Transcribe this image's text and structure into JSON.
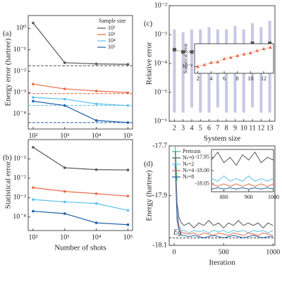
{
  "chart_data": [
    {
      "type": "line",
      "label": "(a)",
      "ylabel": "Energy error (hartree)",
      "x": [
        100,
        1000,
        10000,
        100000
      ],
      "xlog": true,
      "ylog": true,
      "xlim": [
        70,
        140000
      ],
      "ylim": [
        2e-05,
        4
      ],
      "xticks": [
        {
          "value": 100,
          "label": "10²"
        },
        {
          "value": 1000,
          "label": "10³"
        },
        {
          "value": 10000,
          "label": "10⁴"
        },
        {
          "value": 100000,
          "label": "10⁵"
        }
      ],
      "yticks": [
        {
          "value": 0.0001,
          "label": "10⁻⁴"
        },
        {
          "value": 0.001,
          "label": "10⁻³"
        },
        {
          "value": 0.01,
          "label": "10⁻²"
        },
        {
          "value": 0.1,
          "label": "10⁻¹"
        },
        {
          "value": 1,
          "label": "10⁰"
        }
      ],
      "legend_title": "Sample size",
      "legend": "upper right",
      "series": [
        {
          "name": "10²",
          "color": "#555555",
          "values": [
            1.8,
            0.025,
            0.022,
            0.021
          ],
          "level": 0.018
        },
        {
          "name": "10³",
          "color": "#e8694a",
          "values": [
            0.0025,
            0.0015,
            0.0012,
            0.001
          ],
          "level": 0.0009
        },
        {
          "name": "10⁴",
          "color": "#5bc0eb",
          "values": [
            0.0006,
            0.0005,
            0.0003,
            0.00025
          ],
          "level": 0.00025
        },
        {
          "name": "10⁵",
          "color": "#1f5fa8",
          "values": [
            0.0004,
            0.00025,
            5e-05,
            4e-05
          ],
          "level": 4e-05
        }
      ]
    },
    {
      "type": "line",
      "label": "(b)",
      "ylabel": "Statistical error",
      "xlabel": "Number of shots",
      "x": [
        100,
        1000,
        10000,
        100000
      ],
      "xlog": true,
      "ylog": true,
      "xlim": [
        70,
        140000
      ],
      "ylim": [
        2e-05,
        1
      ],
      "xticks": [
        {
          "value": 100,
          "label": "10²"
        },
        {
          "value": 1000,
          "label": "10³"
        },
        {
          "value": 10000,
          "label": "10⁴"
        },
        {
          "value": 100000,
          "label": "10⁵"
        }
      ],
      "yticks": [
        {
          "value": 0.0001,
          "label": "10⁻⁴"
        },
        {
          "value": 0.001,
          "label": "10⁻³"
        },
        {
          "value": 0.01,
          "label": "10⁻²"
        },
        {
          "value": 0.1,
          "label": "10⁻¹"
        }
      ],
      "series": [
        {
          "color": "#555555",
          "values": [
            0.4,
            0.035,
            0.028,
            0.027
          ]
        },
        {
          "color": "#e8694a",
          "values": [
            0.0033,
            0.0021,
            0.0016,
            0.0012
          ]
        },
        {
          "color": "#5bc0eb",
          "values": [
            0.0008,
            0.0006,
            0.0005,
            0.00022
          ]
        },
        {
          "color": "#1f5fa8",
          "values": [
            0.0002,
            0.00015,
            5e-05,
            4e-05
          ]
        }
      ]
    },
    {
      "type": "spread",
      "label": "(c)",
      "ylabel": "Relative error",
      "xlabel": "System size",
      "x": [
        2,
        3,
        4,
        5,
        6,
        7,
        8,
        9,
        10,
        11,
        12,
        13
      ],
      "ylog": true,
      "xlim": [
        1.4,
        13.6
      ],
      "ylim": [
        1e-06,
        0.01
      ],
      "xticks": [
        2,
        3,
        4,
        5,
        6,
        7,
        8,
        9,
        10,
        11,
        12,
        13
      ],
      "yticks": [
        {
          "value": 1e-06,
          "label": "10⁻⁶"
        },
        {
          "value": 1e-05,
          "label": "10⁻⁵"
        },
        {
          "value": 0.0001,
          "label": "10⁻⁴"
        },
        {
          "value": 0.001,
          "label": "10⁻³"
        },
        {
          "value": 0.01,
          "label": "10⁻²"
        }
      ],
      "color": "#555555",
      "spread_color": "#9a9ad0",
      "values": [
        0.0003,
        0.00025,
        0.00025,
        0.0003,
        0.0003,
        0.00025,
        0.00025,
        0.0004,
        0.00025,
        0.0005,
        0.0003,
        0.0005
      ],
      "low": [
        2e-06,
        2e-06,
        3e-06,
        2e-06,
        2e-06,
        3e-06,
        2e-06,
        2e-06,
        2e-06,
        3e-06,
        2e-06,
        2e-06
      ],
      "high": [
        0.0015,
        0.0012,
        0.0015,
        0.0015,
        0.0018,
        0.0015,
        0.0015,
        0.002,
        0.0015,
        0.0025,
        0.0018,
        0.003
      ],
      "inset": {
        "ylabel": "Statistical error",
        "ylog": true,
        "color": "#e8694a",
        "x": [
          2,
          3,
          4,
          5,
          6,
          7,
          8,
          9,
          10,
          11,
          12,
          13
        ],
        "values": [
          0.0001,
          0.00012,
          0.00015,
          0.00016,
          0.00022,
          0.00025,
          0.0003,
          0.00035,
          0.0004,
          0.0005,
          0.0006,
          0.0007
        ],
        "xlim": [
          1.5,
          13.5
        ],
        "ylim": [
          5e-05,
          0.001
        ],
        "xticks": [
          2,
          4,
          6,
          8,
          10,
          12
        ],
        "yticks": [
          {
            "value": 0.0001,
            "label": "10⁻⁴"
          }
        ]
      }
    },
    {
      "type": "line",
      "label": "(d)",
      "ylabel": "Energy (hartree)",
      "xlabel": "Iteration",
      "x": [
        10,
        30,
        50,
        75,
        100,
        150,
        200,
        250,
        300,
        350,
        400,
        450,
        500,
        550,
        600,
        650,
        700,
        750,
        800,
        850,
        900,
        950,
        1000
      ],
      "xlim": [
        -50,
        1020
      ],
      "ylim": [
        -18.1,
        -17.7
      ],
      "xticks": [
        0,
        500,
        1000
      ],
      "yticks": [
        -18.1,
        -17.9,
        -17.7
      ],
      "reference": {
        "label": "Eg",
        "value": -18.07
      },
      "legend": "upper left",
      "series": [
        {
          "name": "Pretrain",
          "color": "#3cb371",
          "values": [
            -17.7,
            -17.84,
            null,
            null,
            null,
            null,
            null,
            null,
            null,
            null,
            null,
            null,
            null,
            null,
            null,
            null,
            null,
            null,
            null,
            null,
            null,
            null,
            null
          ]
        },
        {
          "name": "Nₗ=0",
          "color": "#555555",
          "values": [
            -17.72,
            -17.93,
            -17.99,
            -18.01,
            -18.02,
            -18.01,
            -18.03,
            -18.01,
            -18.02,
            -18.0,
            -18.02,
            -18.01,
            -18.03,
            -18.01,
            -18.02,
            -18.0,
            -18.02,
            -18.01,
            -18.02,
            -18.01,
            -18.03,
            -18.01,
            -18.02
          ]
        },
        {
          "name": "Nₗ=2",
          "color": "#5bc0eb",
          "values": [
            -17.74,
            -17.96,
            -18.02,
            -18.04,
            -18.04,
            -18.05,
            -18.04,
            -18.045,
            -18.04,
            -18.05,
            -18.04,
            -18.045,
            -18.04,
            -18.05,
            -18.04,
            -18.045,
            -18.04,
            -18.05,
            -18.04,
            -18.045,
            -18.04,
            -18.05,
            -18.04
          ]
        },
        {
          "name": "Nₗ=4",
          "color": "#e8694a",
          "values": [
            -17.75,
            -17.98,
            -18.03,
            -18.05,
            -18.05,
            -18.055,
            -18.05,
            -18.06,
            -18.05,
            -18.055,
            -18.06,
            -18.05,
            -18.055,
            -18.06,
            -18.05,
            -18.055,
            -18.06,
            -18.05,
            -18.055,
            -18.06,
            -18.05,
            -18.055,
            -18.06
          ]
        },
        {
          "name": "Nₗ=8",
          "color": "#1f5fa8",
          "values": [
            -17.77,
            -18.0,
            -18.04,
            -18.06,
            -18.06,
            -18.065,
            -18.06,
            -18.065,
            -18.07,
            -18.065,
            -18.06,
            -18.065,
            -18.07,
            -18.065,
            -18.06,
            -18.065,
            -18.07,
            -18.065,
            -18.06,
            -18.065,
            -18.07,
            -18.065,
            -18.065
          ]
        }
      ],
      "inset": {
        "x": [
          750,
          775,
          800,
          825,
          850,
          875,
          900,
          925,
          950,
          975,
          1000
        ],
        "xlim": [
          750,
          1000
        ],
        "ylim": [
          -18.08,
          -17.92
        ],
        "xticks": [
          800,
          900,
          1000
        ],
        "yticks": [
          -17.95,
          {
            "value": -18,
            "label": "-18.00"
          },
          -18.05
        ],
        "series": [
          {
            "color": "#555555",
            "values": [
              -17.96,
              -17.93,
              -17.97,
              -17.95,
              -17.98,
              -17.94,
              -17.96,
              -17.93,
              -17.97,
              -17.95,
              -17.96
            ]
          },
          {
            "color": "#5bc0eb",
            "values": [
              -18.03,
              -18.04,
              -18.02,
              -18.04,
              -18.03,
              -18.04,
              -18.02,
              -18.04,
              -18.03,
              -18.04,
              -18.03
            ]
          },
          {
            "color": "#e8694a",
            "values": [
              -18.05,
              -18.06,
              -18.05,
              -18.06,
              -18.05,
              -18.06,
              -18.05,
              -18.06,
              -18.05,
              -18.06,
              -18.05
            ]
          },
          {
            "color": "#1f5fa8",
            "values": [
              -18.07,
              -18.065,
              -18.07,
              -18.065,
              -18.07,
              -18.065,
              -18.07,
              -18.065,
              -18.07,
              -18.065,
              -18.07
            ]
          }
        ]
      }
    }
  ]
}
